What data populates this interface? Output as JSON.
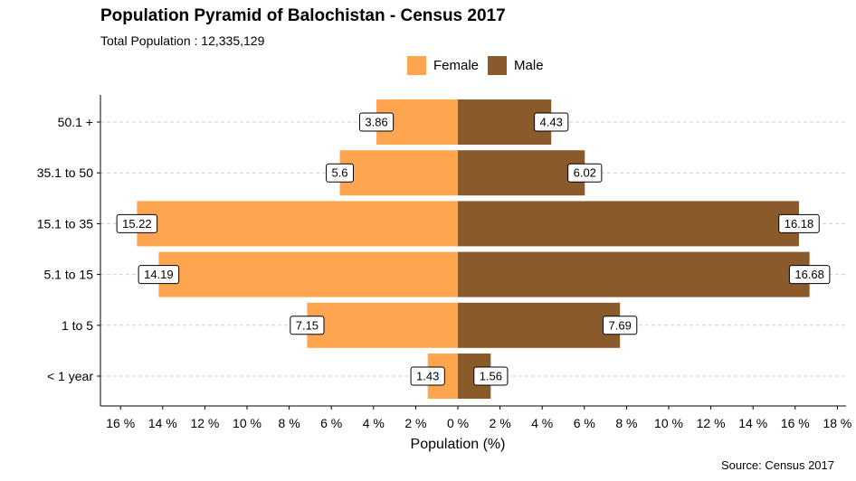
{
  "chart_data": {
    "type": "bar",
    "orientation": "horizontal",
    "title": "Population Pyramid of Balochistan - Census 2017",
    "subtitle": "Total Population : 12,335,129",
    "caption": "Source: Census 2017",
    "xlabel": "Population (%)",
    "ylabel": "",
    "xlim": [
      -16,
      18
    ],
    "x_ticks": [
      -16,
      -14,
      -12,
      -10,
      -8,
      -6,
      -4,
      -2,
      0,
      2,
      4,
      6,
      8,
      10,
      12,
      14,
      16,
      18
    ],
    "x_tick_labels": [
      "16 %",
      "14 %",
      "12 %",
      "10 %",
      "8 %",
      "6 %",
      "4 %",
      "2 %",
      "0 %",
      "2 %",
      "4 %",
      "6 %",
      "8 %",
      "10 %",
      "12 %",
      "14 %",
      "16 %",
      "18 %"
    ],
    "categories": [
      "< 1 year",
      "1 to 5",
      "5.1 to 15",
      "15.1 to 35",
      "35.1 to 50",
      "50.1 +"
    ],
    "series": [
      {
        "name": "Female",
        "color": "#FFA54F",
        "values": [
          1.43,
          7.15,
          14.19,
          15.22,
          5.6,
          3.86
        ]
      },
      {
        "name": "Male",
        "color": "#8B5A2B",
        "values": [
          1.56,
          7.69,
          16.68,
          16.18,
          6.02,
          4.43
        ]
      }
    ],
    "legend_position": "top",
    "grid": "horizontal dashed"
  }
}
